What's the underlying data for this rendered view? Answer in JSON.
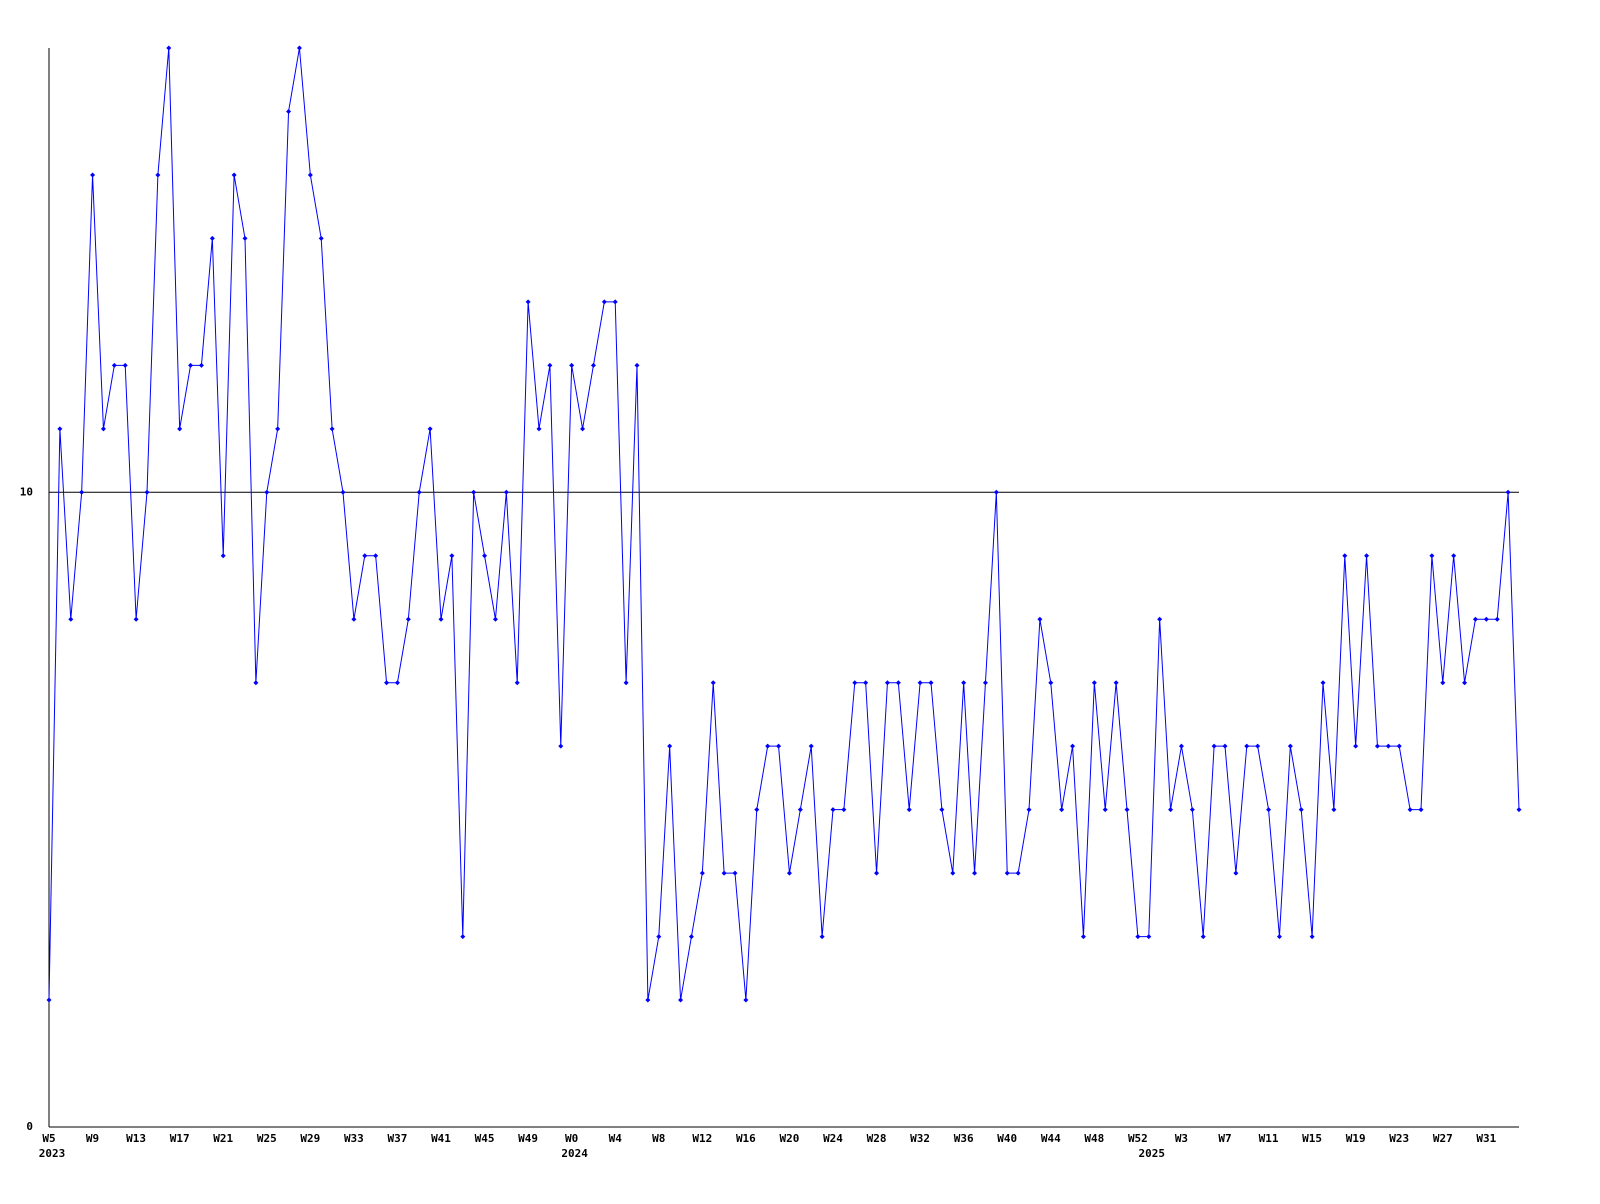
{
  "chart_data": {
    "type": "line",
    "categories": [
      "W5",
      null,
      null,
      null,
      "W9",
      null,
      null,
      null,
      "W13",
      null,
      null,
      null,
      "W17",
      null,
      null,
      null,
      "W21",
      null,
      null,
      null,
      "W25",
      null,
      null,
      null,
      "W29",
      null,
      null,
      null,
      "W33",
      null,
      null,
      null,
      "W37",
      null,
      null,
      null,
      "W41",
      null,
      null,
      null,
      "W45",
      null,
      null,
      null,
      "W49",
      null,
      null,
      null,
      "W0",
      null,
      null,
      null,
      "W4",
      null,
      null,
      null,
      "W8",
      null,
      null,
      null,
      "W12",
      null,
      null,
      null,
      "W16",
      null,
      null,
      null,
      "W20",
      null,
      null,
      null,
      "W24",
      null,
      null,
      null,
      "W28",
      null,
      null,
      null,
      "W32",
      null,
      null,
      null,
      "W36",
      null,
      null,
      null,
      "W40",
      null,
      null,
      null,
      "W44",
      null,
      null,
      null,
      "W48",
      null,
      null,
      null,
      "W52",
      null,
      null,
      null,
      "W3",
      null,
      null,
      null,
      "W7",
      null,
      null,
      null,
      "W11",
      null,
      null,
      null,
      "W15",
      null,
      null,
      null,
      "W19",
      null,
      null,
      null,
      "W23",
      null,
      null,
      null,
      "W27",
      null,
      null,
      null,
      "W31",
      null,
      null,
      null
    ],
    "x_groups": [
      {
        "label": "2023",
        "start": 0
      },
      {
        "label": "2024",
        "start": 48
      },
      {
        "label": "2025",
        "start": 101
      }
    ],
    "values": [
      2,
      11,
      8,
      10,
      15,
      11,
      12,
      12,
      8,
      10,
      15,
      17,
      11,
      12,
      12,
      14,
      9,
      15,
      14,
      7,
      10,
      11,
      16,
      17,
      15,
      14,
      11,
      10,
      8,
      9,
      9,
      7,
      7,
      8,
      10,
      11,
      8,
      9,
      3,
      10,
      9,
      8,
      10,
      7,
      13,
      11,
      12,
      6,
      12,
      11,
      12,
      13,
      13,
      7,
      12,
      2,
      3,
      6,
      2,
      3,
      4,
      7,
      4,
      4,
      2,
      5,
      6,
      6,
      4,
      5,
      6,
      3,
      5,
      5,
      7,
      7,
      4,
      7,
      7,
      5,
      7,
      7,
      5,
      4,
      7,
      4,
      7,
      10,
      4,
      4,
      5,
      8,
      7,
      5,
      6,
      3,
      7,
      5,
      7,
      5,
      3,
      3,
      8,
      5,
      6,
      5,
      3,
      6,
      6,
      4,
      6,
      6,
      5,
      3,
      6,
      5,
      3,
      7,
      5,
      9,
      6,
      9,
      6,
      6,
      6,
      5,
      5,
      9,
      7,
      9,
      7,
      8,
      8,
      8,
      10,
      5
    ],
    "color": "#0000ff",
    "ylim": [
      0,
      17
    ],
    "yticks": [
      0,
      10
    ],
    "grid": true
  }
}
